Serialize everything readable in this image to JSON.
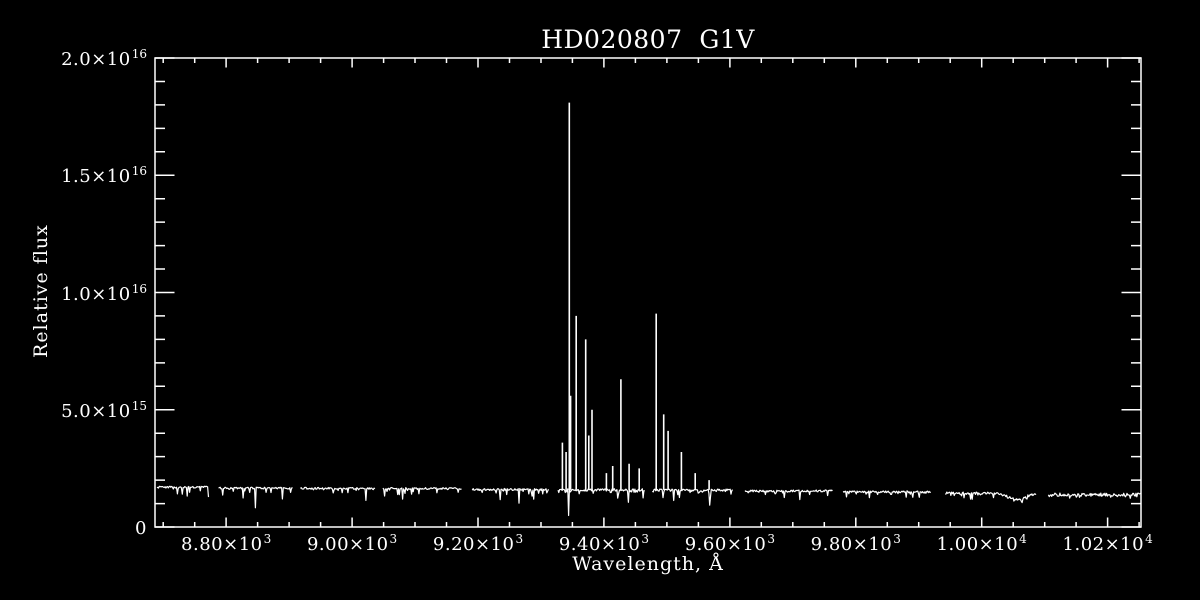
{
  "page": {
    "background": "#000000",
    "foreground": "#ffffff"
  },
  "chart_data": {
    "type": "line",
    "title": "HD020807  G1V",
    "xlabel": "Wavelength, Å",
    "ylabel": "Relative flux",
    "xlim": [
      8687,
      10253
    ],
    "ylim": [
      0,
      2e+16
    ],
    "grid": false,
    "legend": "none",
    "line_color": "#ffffff",
    "axis_color": "#ffffff",
    "x_minor_step": 50,
    "y_minor_step": 1000000000000000.0,
    "x_ticks": [
      {
        "value": 8800,
        "base": "8.80×10",
        "exp": "3"
      },
      {
        "value": 9000,
        "base": "9.00×10",
        "exp": "3"
      },
      {
        "value": 9200,
        "base": "9.20×10",
        "exp": "3"
      },
      {
        "value": 9400,
        "base": "9.40×10",
        "exp": "3"
      },
      {
        "value": 9600,
        "base": "9.60×10",
        "exp": "3"
      },
      {
        "value": 9800,
        "base": "9.80×10",
        "exp": "3"
      },
      {
        "value": 10000,
        "base": "1.00×10",
        "exp": "4"
      },
      {
        "value": 10200,
        "base": "1.02×10",
        "exp": "4"
      }
    ],
    "y_ticks": [
      {
        "value": 0,
        "base": "0",
        "exp": ""
      },
      {
        "value": 5000000000000000.0,
        "base": "5.0×10",
        "exp": "15"
      },
      {
        "value": 1e+16,
        "base": "1.0×10",
        "exp": "16"
      },
      {
        "value": 1.5e+16,
        "base": "1.5×10",
        "exp": "16"
      },
      {
        "value": 2e+16,
        "base": "2.0×10",
        "exp": "16"
      }
    ],
    "segments": [
      {
        "from": 8690,
        "to": 8773,
        "continuum": 1700000000000000.0,
        "noise": 40000000000000.0,
        "dip_typ": 130000000000000.0,
        "dip_max": 750000000000000.0
      },
      {
        "from": 8788,
        "to": 8906,
        "continuum": 1660000000000000.0,
        "noise": 40000000000000.0,
        "dip_typ": 150000000000000.0,
        "dip_max": 1000000000000000.0
      },
      {
        "from": 8918,
        "to": 9037,
        "continuum": 1650000000000000.0,
        "noise": 40000000000000.0,
        "dip_typ": 150000000000000.0,
        "dip_max": 900000000000000.0
      },
      {
        "from": 9049,
        "to": 9175,
        "continuum": 1640000000000000.0,
        "noise": 40000000000000.0,
        "dip_typ": 130000000000000.0,
        "dip_max": 800000000000000.0
      },
      {
        "from": 9191,
        "to": 9313,
        "continuum": 1600000000000000.0,
        "noise": 40000000000000.0,
        "dip_typ": 130000000000000.0,
        "dip_max": 800000000000000.0
      },
      {
        "from": 9327,
        "to": 9465,
        "continuum": 1580000000000000.0,
        "noise": 50000000000000.0,
        "dip_typ": 170000000000000.0,
        "dip_max": 1050000000000000.0
      },
      {
        "from": 9477,
        "to": 9605,
        "continuum": 1580000000000000.0,
        "noise": 40000000000000.0,
        "dip_typ": 130000000000000.0,
        "dip_max": 800000000000000.0
      },
      {
        "from": 9624,
        "to": 9764,
        "continuum": 1540000000000000.0,
        "noise": 40000000000000.0,
        "dip_typ": 120000000000000.0,
        "dip_max": 750000000000000.0
      },
      {
        "from": 9780,
        "to": 9920,
        "continuum": 1500000000000000.0,
        "noise": 40000000000000.0,
        "dip_typ": 100000000000000.0,
        "dip_max": 600000000000000.0
      },
      {
        "from": 9942,
        "to": 10087,
        "continuum": 1440000000000000.0,
        "noise": 50000000000000.0,
        "dip_typ": 90000000000000.0,
        "dip_max": 500000000000000.0
      },
      {
        "from": 10106,
        "to": 10253,
        "continuum": 1380000000000000.0,
        "noise": 70000000000000.0,
        "dip_typ": 80000000000000.0,
        "dip_max": 450000000000000.0
      }
    ],
    "absorption_band": {
      "center": 10056,
      "sigma": 14,
      "depth": 260000000000000.0
    },
    "emission_lines": [
      {
        "wavelength": 9334,
        "flux": 3600000000000000.0
      },
      {
        "wavelength": 9340,
        "flux": 3200000000000000.0
      },
      {
        "wavelength": 9345,
        "flux": 1.81e+16
      },
      {
        "wavelength": 9347,
        "flux": 5600000000000000.0
      },
      {
        "wavelength": 9356,
        "flux": 9000000000000000.0
      },
      {
        "wavelength": 9371,
        "flux": 8000000000000000.0
      },
      {
        "wavelength": 9376,
        "flux": 3900000000000000.0
      },
      {
        "wavelength": 9381,
        "flux": 5000000000000000.0
      },
      {
        "wavelength": 9404,
        "flux": 2300000000000000.0
      },
      {
        "wavelength": 9414,
        "flux": 2600000000000000.0
      },
      {
        "wavelength": 9427,
        "flux": 6300000000000000.0
      },
      {
        "wavelength": 9440,
        "flux": 2700000000000000.0
      },
      {
        "wavelength": 9456,
        "flux": 2500000000000000.0
      },
      {
        "wavelength": 9483,
        "flux": 9100000000000000.0
      },
      {
        "wavelength": 9495,
        "flux": 4800000000000000.0
      },
      {
        "wavelength": 9502,
        "flux": 4100000000000000.0
      },
      {
        "wavelength": 9523,
        "flux": 3200000000000000.0
      },
      {
        "wavelength": 9545,
        "flux": 2300000000000000.0
      },
      {
        "wavelength": 9567,
        "flux": 2000000000000000.0
      }
    ]
  }
}
